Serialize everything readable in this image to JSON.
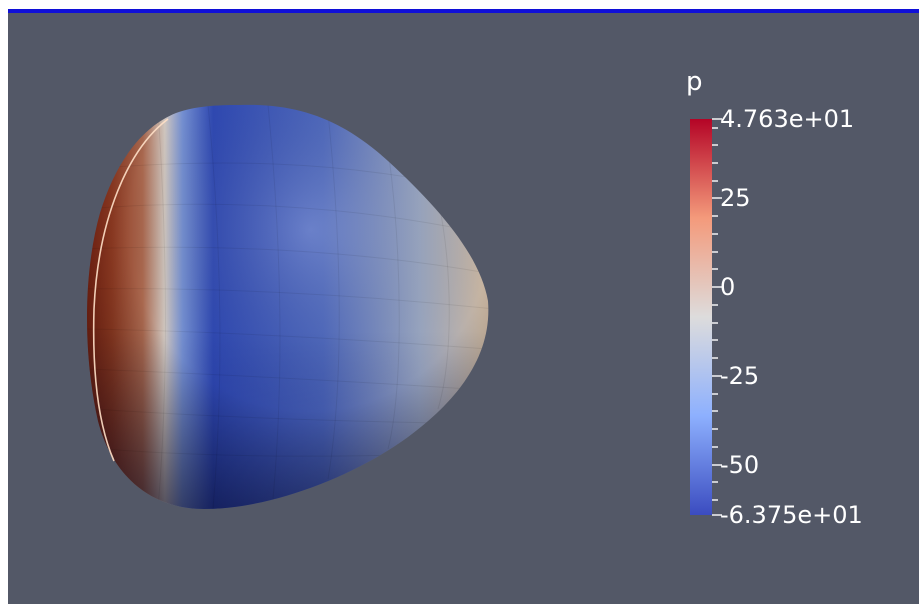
{
  "view": {
    "background": "#535867",
    "active_border_color": "#1010d8"
  },
  "scalar_bar": {
    "title": "p",
    "range": [
      -63.75,
      47.63
    ],
    "max_label": "4.763e+01",
    "min_label": "-6.375e+01",
    "labels": [
      {
        "value": 25,
        "text": "25"
      },
      {
        "value": 0,
        "text": "0"
      },
      {
        "value": -25,
        "text": "-25"
      },
      {
        "value": -50,
        "text": "-50"
      }
    ],
    "colormap": [
      "#3b4cc0",
      "#8db0fe",
      "#dddcdc",
      "#f49a7b",
      "#b40426"
    ]
  }
}
